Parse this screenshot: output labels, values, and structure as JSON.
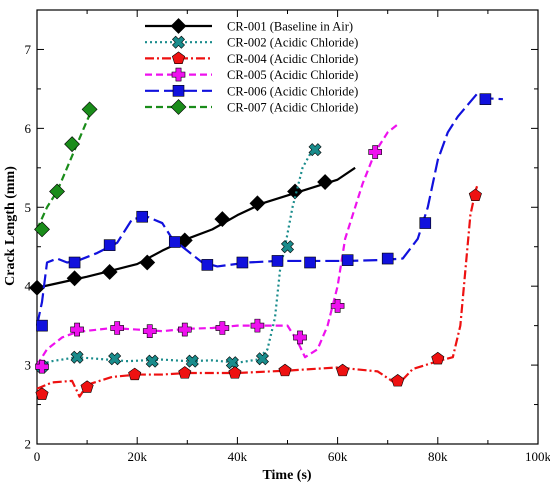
{
  "chart_data": {
    "type": "line",
    "title": "",
    "xlabel": "Time (s)",
    "ylabel": "Crack Length (mm)",
    "xlim": [
      0,
      100000
    ],
    "ylim": [
      2,
      7.5
    ],
    "xticks": [
      0,
      20000,
      40000,
      60000,
      80000,
      100000
    ],
    "xtick_labels": [
      "0",
      "20k",
      "40k",
      "60k",
      "80k",
      "100k"
    ],
    "yticks": [
      2,
      3,
      4,
      5,
      6,
      7
    ],
    "ytick_labels": [
      "2",
      "3",
      "4",
      "5",
      "6",
      "7"
    ],
    "grid": false,
    "legend_position": "top-left",
    "series": [
      {
        "name": "CR-001 (Baseline in Air)",
        "color": "#000000",
        "dash": "solid",
        "marker": "diamond",
        "line": [
          [
            0,
            3.98
          ],
          [
            5000,
            4.05
          ],
          [
            10000,
            4.12
          ],
          [
            15000,
            4.2
          ],
          [
            20000,
            4.28
          ],
          [
            25000,
            4.45
          ],
          [
            30000,
            4.6
          ],
          [
            35000,
            4.72
          ],
          [
            40000,
            4.9
          ],
          [
            45000,
            5.05
          ],
          [
            50000,
            5.15
          ],
          [
            55000,
            5.25
          ],
          [
            60000,
            5.35
          ],
          [
            63500,
            5.5
          ]
        ],
        "markers": [
          [
            0,
            3.98
          ],
          [
            7500,
            4.1
          ],
          [
            14500,
            4.18
          ],
          [
            22000,
            4.3
          ],
          [
            29500,
            4.58
          ],
          [
            37000,
            4.85
          ],
          [
            44000,
            5.05
          ],
          [
            51500,
            5.2
          ],
          [
            57500,
            5.32
          ]
        ]
      },
      {
        "name": "CR-002 (Acidic Chloride)",
        "color": "#1a8c8c",
        "dash": "dot",
        "marker": "x",
        "line": [
          [
            0,
            3.0
          ],
          [
            3000,
            3.05
          ],
          [
            8000,
            3.1
          ],
          [
            12000,
            3.08
          ],
          [
            18000,
            3.05
          ],
          [
            25000,
            3.07
          ],
          [
            30000,
            3.05
          ],
          [
            35000,
            3.06
          ],
          [
            40000,
            3.03
          ],
          [
            44000,
            3.07
          ],
          [
            46000,
            3.2
          ],
          [
            47500,
            3.6
          ],
          [
            48500,
            4.2
          ],
          [
            49500,
            4.5
          ],
          [
            51000,
            5.0
          ],
          [
            53000,
            5.5
          ],
          [
            55000,
            5.73
          ]
        ],
        "markers": [
          [
            1000,
            2.98
          ],
          [
            8000,
            3.1
          ],
          [
            15500,
            3.08
          ],
          [
            23000,
            3.05
          ],
          [
            31000,
            3.05
          ],
          [
            39000,
            3.03
          ],
          [
            45000,
            3.08
          ],
          [
            50000,
            4.5
          ],
          [
            55500,
            5.73
          ]
        ]
      },
      {
        "name": "CR-004 (Acidic Chloride)",
        "color": "#ee1111",
        "dash": "dashdot",
        "marker": "pentagon",
        "line": [
          [
            0,
            2.7
          ],
          [
            3000,
            2.78
          ],
          [
            7000,
            2.8
          ],
          [
            8500,
            2.6
          ],
          [
            10000,
            2.75
          ],
          [
            15000,
            2.85
          ],
          [
            20000,
            2.88
          ],
          [
            25000,
            2.88
          ],
          [
            30000,
            2.9
          ],
          [
            40000,
            2.9
          ],
          [
            50000,
            2.93
          ],
          [
            60000,
            2.97
          ],
          [
            68000,
            2.92
          ],
          [
            72000,
            2.75
          ],
          [
            75000,
            2.95
          ],
          [
            80000,
            3.05
          ],
          [
            83000,
            3.1
          ],
          [
            84500,
            3.5
          ],
          [
            85500,
            4.2
          ],
          [
            86500,
            4.9
          ],
          [
            87500,
            5.2
          ],
          [
            88000,
            5.3
          ]
        ],
        "markers": [
          [
            1000,
            2.63
          ],
          [
            10000,
            2.72
          ],
          [
            19500,
            2.88
          ],
          [
            29500,
            2.9
          ],
          [
            39500,
            2.9
          ],
          [
            49500,
            2.93
          ],
          [
            61000,
            2.93
          ],
          [
            72000,
            2.8
          ],
          [
            80000,
            3.08
          ],
          [
            87500,
            5.15
          ]
        ]
      },
      {
        "name": "CR-005 (Acidic Chloride)",
        "color": "#ee11ee",
        "dash": "dash",
        "marker": "plus",
        "line": [
          [
            0,
            3.0
          ],
          [
            2000,
            3.2
          ],
          [
            5000,
            3.35
          ],
          [
            8000,
            3.42
          ],
          [
            15000,
            3.47
          ],
          [
            20000,
            3.45
          ],
          [
            25000,
            3.43
          ],
          [
            30000,
            3.46
          ],
          [
            35000,
            3.47
          ],
          [
            40000,
            3.5
          ],
          [
            45000,
            3.5
          ],
          [
            50000,
            3.5
          ],
          [
            52000,
            3.3
          ],
          [
            53500,
            3.1
          ],
          [
            56000,
            3.2
          ],
          [
            58000,
            3.5
          ],
          [
            60000,
            4.0
          ],
          [
            61500,
            4.6
          ],
          [
            63500,
            5.0
          ],
          [
            65000,
            5.3
          ],
          [
            67500,
            5.7
          ],
          [
            70000,
            5.95
          ],
          [
            72000,
            6.05
          ]
        ],
        "markers": [
          [
            1000,
            2.98
          ],
          [
            8000,
            3.45
          ],
          [
            16000,
            3.47
          ],
          [
            22500,
            3.43
          ],
          [
            29500,
            3.45
          ],
          [
            37000,
            3.47
          ],
          [
            44000,
            3.5
          ],
          [
            52500,
            3.35
          ],
          [
            60000,
            3.75
          ],
          [
            67500,
            5.7
          ]
        ]
      },
      {
        "name": "CR-006 (Acidic Chloride)",
        "color": "#1111dd",
        "dash": "longdash",
        "marker": "square",
        "line": [
          [
            0,
            3.5
          ],
          [
            1000,
            3.8
          ],
          [
            2000,
            4.3
          ],
          [
            4000,
            4.35
          ],
          [
            6000,
            4.3
          ],
          [
            8000,
            4.32
          ],
          [
            12000,
            4.42
          ],
          [
            16000,
            4.55
          ],
          [
            19000,
            4.85
          ],
          [
            22000,
            4.88
          ],
          [
            25000,
            4.8
          ],
          [
            27000,
            4.6
          ],
          [
            30000,
            4.45
          ],
          [
            33000,
            4.3
          ],
          [
            36000,
            4.25
          ],
          [
            42000,
            4.3
          ],
          [
            48000,
            4.32
          ],
          [
            55000,
            4.32
          ],
          [
            62000,
            4.32
          ],
          [
            68000,
            4.33
          ],
          [
            73000,
            4.35
          ],
          [
            76000,
            4.6
          ],
          [
            78000,
            5.0
          ],
          [
            80000,
            5.6
          ],
          [
            82000,
            5.95
          ],
          [
            84000,
            6.15
          ],
          [
            86000,
            6.3
          ],
          [
            88000,
            6.45
          ],
          [
            90000,
            6.38
          ],
          [
            93000,
            6.37
          ]
        ],
        "markers": [
          [
            1000,
            3.5
          ],
          [
            7500,
            4.3
          ],
          [
            14500,
            4.52
          ],
          [
            21000,
            4.88
          ],
          [
            27500,
            4.56
          ],
          [
            34000,
            4.27
          ],
          [
            41000,
            4.3
          ],
          [
            48000,
            4.32
          ],
          [
            54500,
            4.3
          ],
          [
            62000,
            4.33
          ],
          [
            70000,
            4.35
          ],
          [
            77500,
            4.8
          ],
          [
            89500,
            6.37
          ]
        ]
      },
      {
        "name": "CR-007 (Acidic Chloride)",
        "color": "#1a8c1a",
        "dash": "dash",
        "marker": "diamond",
        "line": [
          [
            0,
            4.72
          ],
          [
            2000,
            5.0
          ],
          [
            4000,
            5.2
          ],
          [
            6000,
            5.5
          ],
          [
            8000,
            5.8
          ],
          [
            10000,
            6.1
          ],
          [
            11000,
            6.24
          ]
        ],
        "markers": [
          [
            1000,
            4.72
          ],
          [
            4000,
            5.2
          ],
          [
            7000,
            5.8
          ],
          [
            10500,
            6.24
          ]
        ]
      }
    ]
  }
}
